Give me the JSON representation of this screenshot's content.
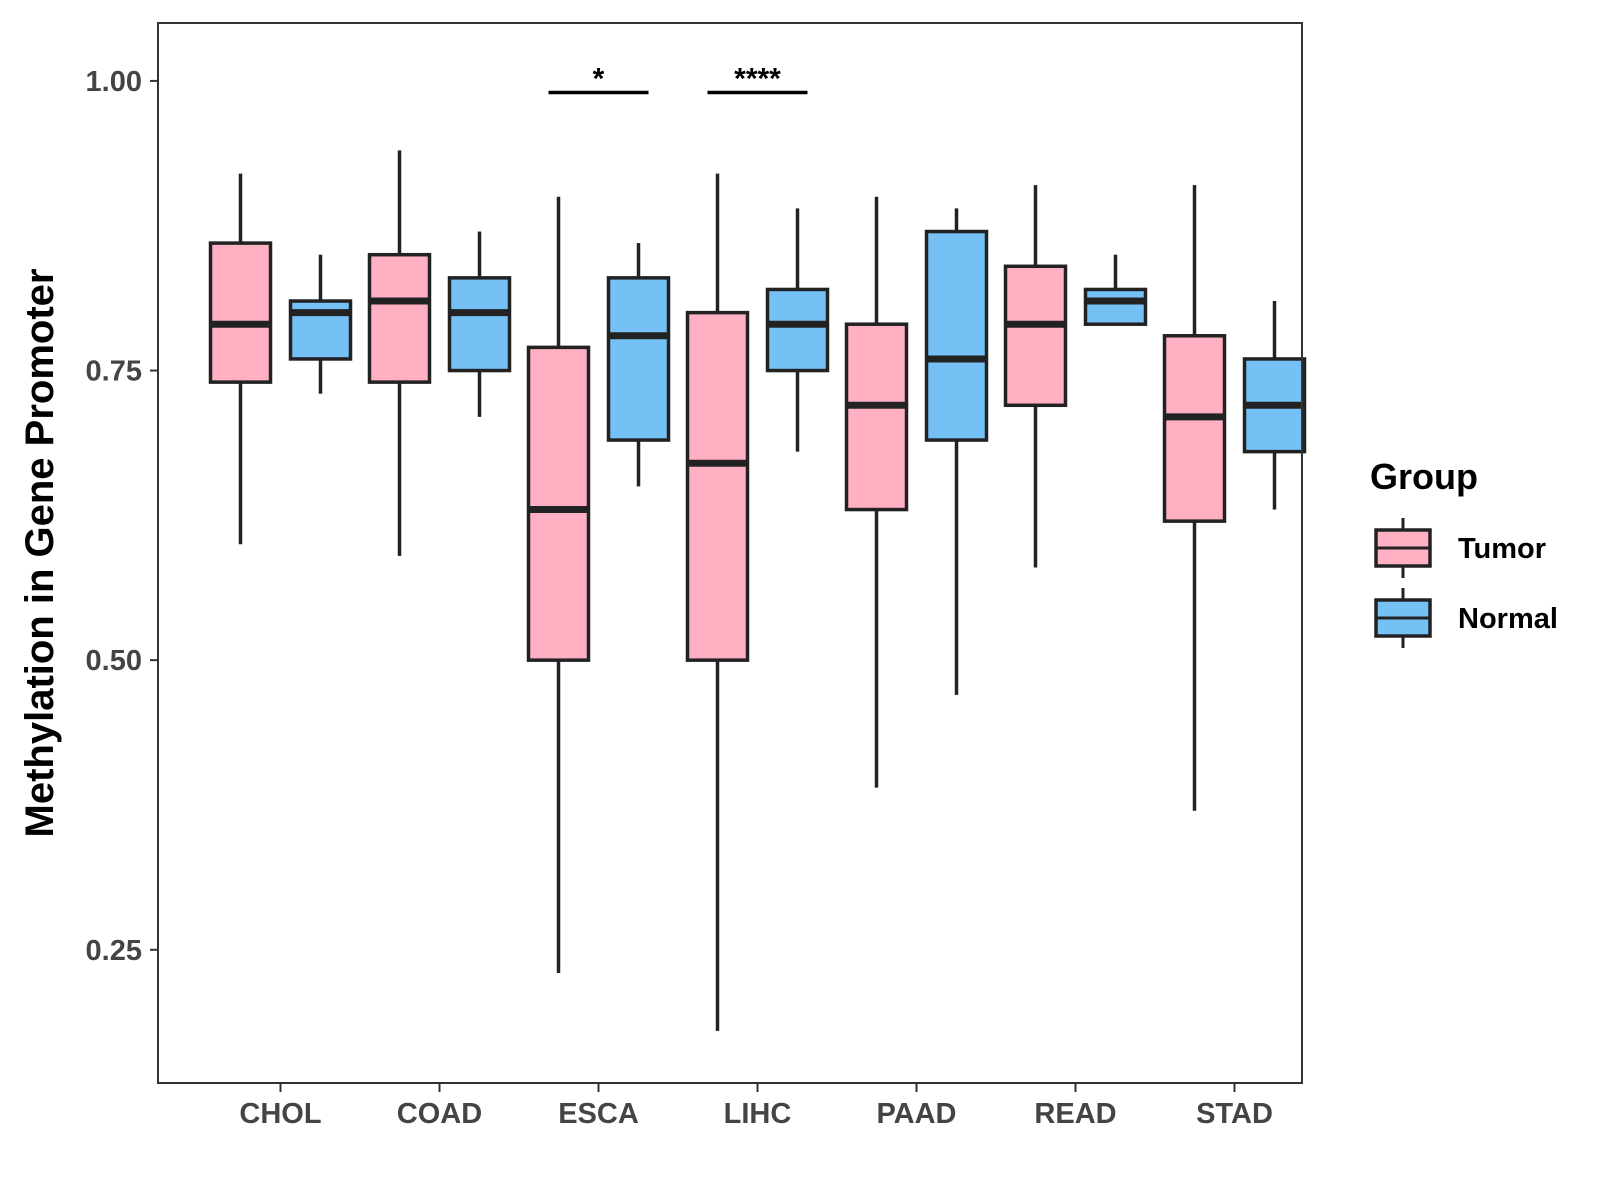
{
  "chart_data": {
    "type": "boxplot",
    "title": "",
    "xlabel": "",
    "ylabel": "Methylation in Gene Promoter",
    "ylim": [
      0.135,
      1.05
    ],
    "yticks": [
      0.25,
      0.5,
      0.75,
      1.0
    ],
    "ytick_labels": [
      "0.25",
      "0.50",
      "0.75",
      "1.00"
    ],
    "categories": [
      "CHOL",
      "COAD",
      "ESCA",
      "LIHC",
      "PAAD",
      "READ",
      "STAD"
    ],
    "grid": false,
    "legend": {
      "title": "Group",
      "position": "right",
      "entries": [
        {
          "name": "Tumor",
          "color": "#FFB0C2"
        },
        {
          "name": "Normal",
          "color": "#75C1F6"
        }
      ]
    },
    "series": [
      {
        "name": "Tumor",
        "color": "#FFB0C2",
        "boxes": [
          {
            "whisker_low": 0.6,
            "q1": 0.74,
            "median": 0.79,
            "q3": 0.86,
            "whisker_high": 0.92
          },
          {
            "whisker_low": 0.59,
            "q1": 0.74,
            "median": 0.81,
            "q3": 0.85,
            "whisker_high": 0.94
          },
          {
            "whisker_low": 0.23,
            "q1": 0.5,
            "median": 0.63,
            "q3": 0.77,
            "whisker_high": 0.9
          },
          {
            "whisker_low": 0.18,
            "q1": 0.5,
            "median": 0.67,
            "q3": 0.8,
            "whisker_high": 0.92
          },
          {
            "whisker_low": 0.39,
            "q1": 0.63,
            "median": 0.72,
            "q3": 0.79,
            "whisker_high": 0.9
          },
          {
            "whisker_low": 0.58,
            "q1": 0.72,
            "median": 0.79,
            "q3": 0.84,
            "whisker_high": 0.91
          },
          {
            "whisker_low": 0.37,
            "q1": 0.62,
            "median": 0.71,
            "q3": 0.78,
            "whisker_high": 0.91
          }
        ]
      },
      {
        "name": "Normal",
        "color": "#75C1F6",
        "boxes": [
          {
            "whisker_low": 0.73,
            "q1": 0.76,
            "median": 0.8,
            "q3": 0.81,
            "whisker_high": 0.85
          },
          {
            "whisker_low": 0.71,
            "q1": 0.75,
            "median": 0.8,
            "q3": 0.83,
            "whisker_high": 0.87
          },
          {
            "whisker_low": 0.65,
            "q1": 0.69,
            "median": 0.78,
            "q3": 0.83,
            "whisker_high": 0.86
          },
          {
            "whisker_low": 0.68,
            "q1": 0.75,
            "median": 0.79,
            "q3": 0.82,
            "whisker_high": 0.89
          },
          {
            "whisker_low": 0.47,
            "q1": 0.69,
            "median": 0.76,
            "q3": 0.87,
            "whisker_high": 0.89
          },
          {
            "whisker_low": 0.79,
            "q1": 0.79,
            "median": 0.81,
            "q3": 0.82,
            "whisker_high": 0.85
          },
          {
            "whisker_low": 0.63,
            "q1": 0.68,
            "median": 0.72,
            "q3": 0.76,
            "whisker_high": 0.81
          }
        ]
      }
    ],
    "annotations": [
      {
        "category": "ESCA",
        "label": "*",
        "y": 0.99
      },
      {
        "category": "LIHC",
        "label": "****",
        "y": 0.99
      }
    ]
  }
}
